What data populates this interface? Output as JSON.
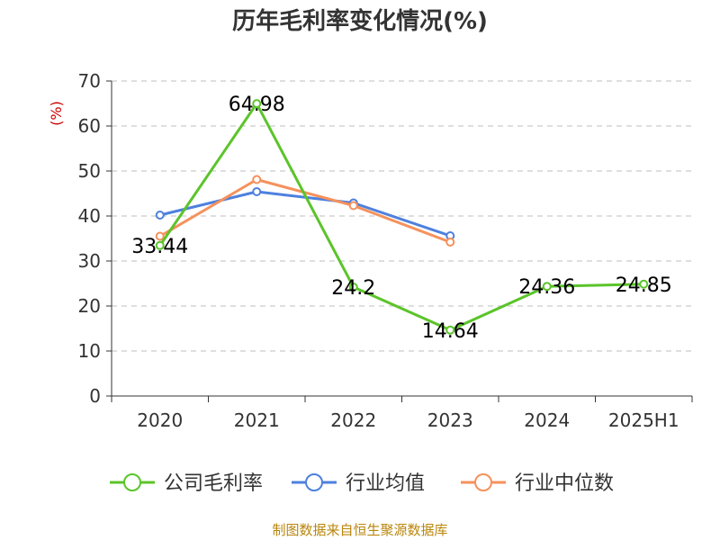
{
  "colors": {
    "company": "#5bc42a",
    "industry_avg": "#4e80de",
    "industry_median": "#f5915c",
    "axis": "#333333",
    "grid": "#bfbfbf",
    "unit": "#cc0000",
    "source": "#b8860b"
  },
  "chart_data": {
    "type": "line",
    "title": "历年毛利率变化情况(%)",
    "ylabel": "(%)",
    "xlabel": "",
    "categories": [
      "2020",
      "2021",
      "2022",
      "2023",
      "2024",
      "2025H1"
    ],
    "ylim": [
      0,
      70
    ],
    "yticks": [
      0,
      10,
      20,
      30,
      40,
      50,
      60,
      70
    ],
    "grid": true,
    "legend_position": "bottom",
    "series": [
      {
        "name": "公司毛利率",
        "color_key": "company",
        "values": [
          33.44,
          64.98,
          24.2,
          14.64,
          24.36,
          24.85
        ],
        "labels": [
          "33.44",
          "64.98",
          "24.2",
          "14.64",
          "24.36",
          "24.85"
        ]
      },
      {
        "name": "行业均值",
        "color_key": "industry_avg",
        "values": [
          40.2,
          45.4,
          42.9,
          35.6,
          null,
          null
        ]
      },
      {
        "name": "行业中位数",
        "color_key": "industry_median",
        "values": [
          35.5,
          48.1,
          42.3,
          34.2,
          null,
          null
        ]
      }
    ]
  },
  "footer": {
    "source": "制图数据来自恒生聚源数据库"
  }
}
